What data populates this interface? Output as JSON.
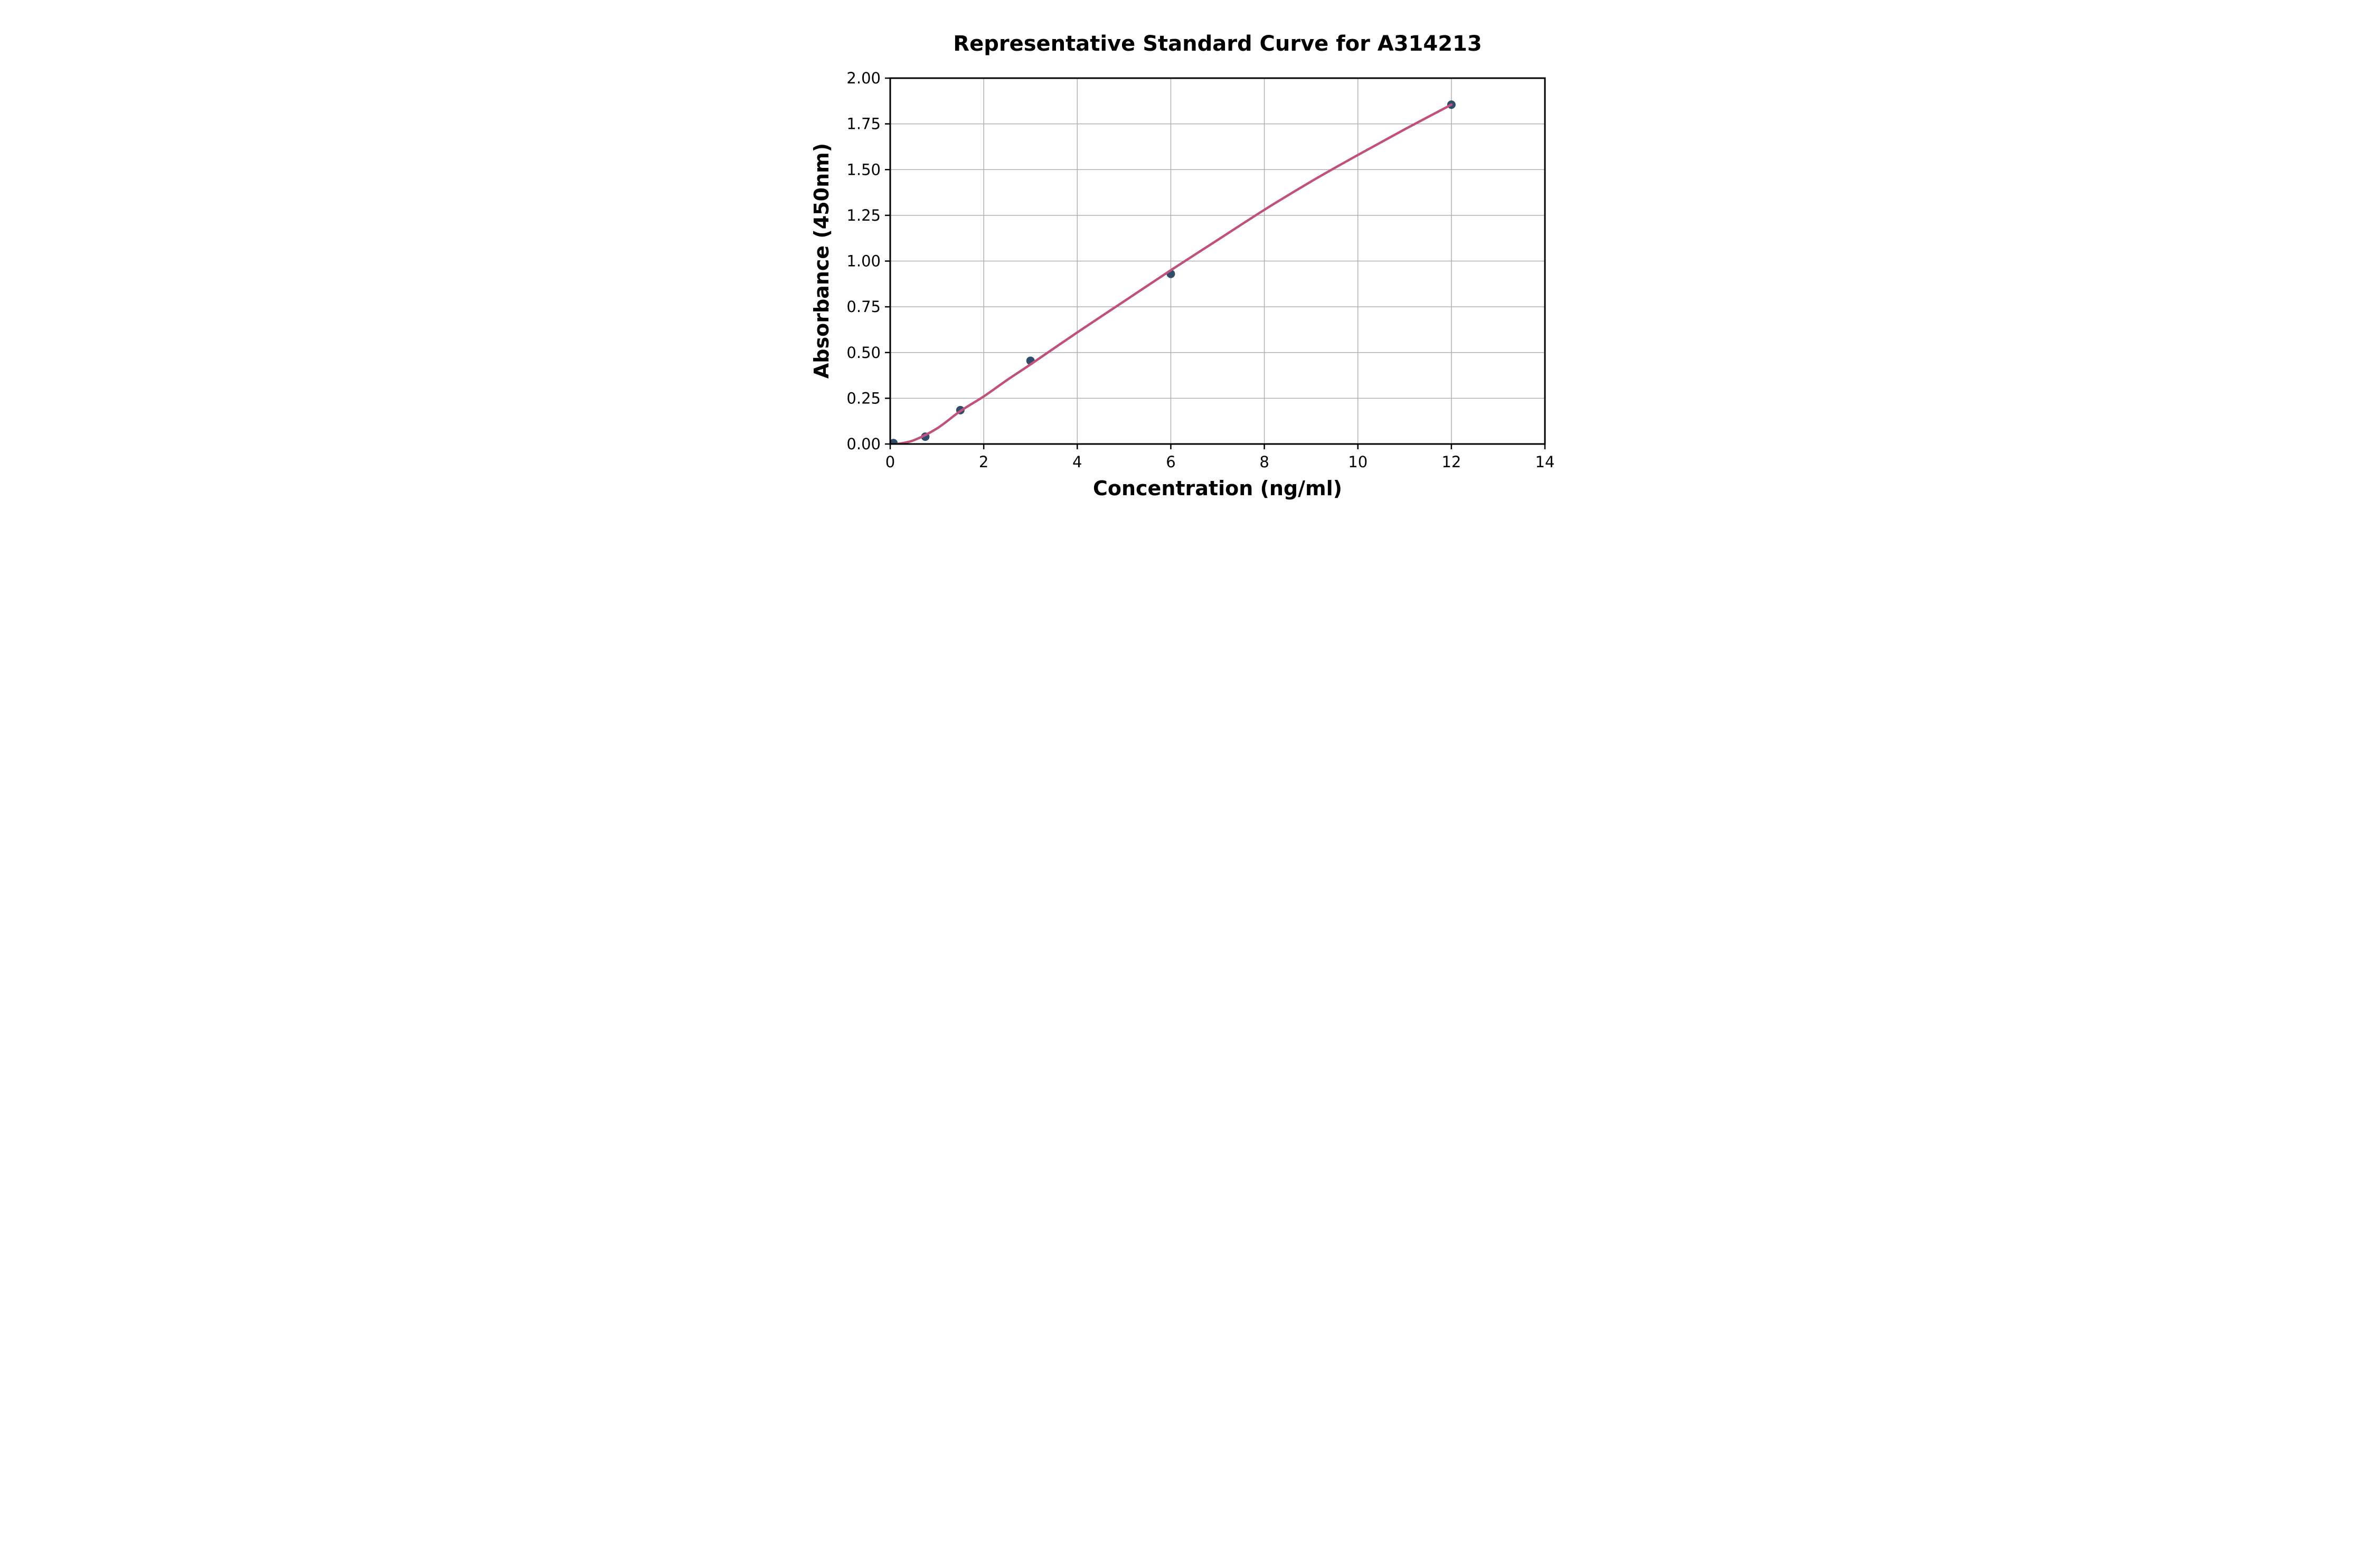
{
  "chart_data": {
    "type": "scatter",
    "title": "Representative Standard Curve for A314213",
    "xlabel": "Concentration (ng/ml)",
    "ylabel": "Absorbance (450nm)",
    "xlim": [
      0,
      14
    ],
    "ylim": [
      0,
      2
    ],
    "x_ticks": [
      0,
      2,
      4,
      6,
      8,
      10,
      12,
      14
    ],
    "x_tick_labels": [
      "0",
      "2",
      "4",
      "6",
      "8",
      "10",
      "12",
      "14"
    ],
    "y_ticks": [
      0,
      0.25,
      0.5,
      0.75,
      1.0,
      1.25,
      1.5,
      1.75,
      2.0
    ],
    "y_tick_labels": [
      "0.00",
      "0.25",
      "0.50",
      "0.75",
      "1.00",
      "1.25",
      "1.50",
      "1.75",
      "2.00"
    ],
    "grid": true,
    "legend": "none",
    "series": [
      {
        "name": "standard-points",
        "type": "scatter",
        "color": "#2f4d6b",
        "points": [
          [
            0.07,
            0.005
          ],
          [
            0.75,
            0.04
          ],
          [
            1.5,
            0.185
          ],
          [
            3,
            0.455
          ],
          [
            6,
            0.93
          ],
          [
            12,
            1.855
          ]
        ]
      },
      {
        "name": "fit-curve",
        "type": "line",
        "color": "#c0517c",
        "points": [
          [
            0.15,
            0.0
          ],
          [
            0.5,
            0.02
          ],
          [
            1.0,
            0.085
          ],
          [
            1.5,
            0.18
          ],
          [
            2.0,
            0.26
          ],
          [
            2.5,
            0.35
          ],
          [
            3.0,
            0.435
          ],
          [
            4.0,
            0.61
          ],
          [
            5.0,
            0.78
          ],
          [
            6.0,
            0.95
          ],
          [
            7.0,
            1.115
          ],
          [
            8.0,
            1.28
          ],
          [
            9.0,
            1.435
          ],
          [
            10.0,
            1.58
          ],
          [
            11.0,
            1.72
          ],
          [
            12.0,
            1.855
          ]
        ]
      }
    ]
  },
  "colors": {
    "curve": "#c0517c",
    "points": "#2f4d6b",
    "grid": "#b0b0b0",
    "axis": "#000000",
    "background": "#ffffff"
  }
}
